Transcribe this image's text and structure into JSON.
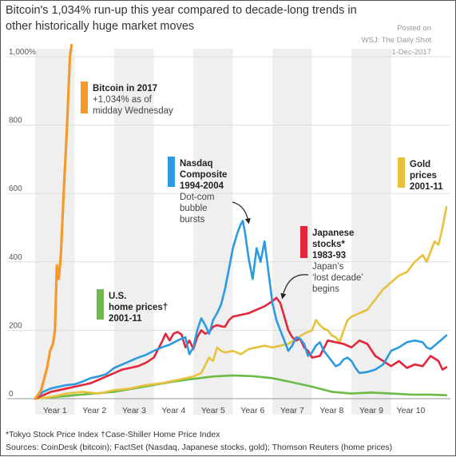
{
  "title": "Bitcoin's 1,034% run-up this year compared to decade-long trends in other historically huge market moves",
  "posted": {
    "line1": "Posted on",
    "line2": "WSJ: The Daily Shot",
    "line3": "01-Dec-2017"
  },
  "footnotes": {
    "line1": "*Tokyo Stock Price Index   †Case-Shiller Home Price Index",
    "line2": "Sources: CoinDesk (bitcoin); FactSet (Nasdaq, Japanese stocks, gold); Thomson Reuters (home prices)"
  },
  "colors": {
    "bitcoin": "#f59a2a",
    "nasdaq": "#2b9ae0",
    "japan": "#e3263a",
    "gold": "#e8c23a",
    "home": "#6cbb47",
    "band": "#efefef",
    "grid": "#dddddd"
  },
  "chart_data": {
    "type": "line",
    "title": "Bitcoin's 1,034% run-up this year compared to decade-long trends in other historically huge market moves",
    "xlabel": "",
    "ylabel": "",
    "ylim": [
      0,
      1000
    ],
    "xlim": [
      0,
      10
    ],
    "grid": true,
    "y_ticks": [
      {
        "value": 0,
        "label": "0"
      },
      {
        "value": 200,
        "label": "200"
      },
      {
        "value": 400,
        "label": "400"
      },
      {
        "value": 600,
        "label": "600"
      },
      {
        "value": 800,
        "label": "800"
      },
      {
        "value": 1000,
        "label": "1,000%"
      }
    ],
    "x_ticks": [
      {
        "value": 0.5,
        "label": "Year 1"
      },
      {
        "value": 1.5,
        "label": "Year 2"
      },
      {
        "value": 2.5,
        "label": "Year 3"
      },
      {
        "value": 3.5,
        "label": "Year 4"
      },
      {
        "value": 4.5,
        "label": "Year 5"
      },
      {
        "value": 5.5,
        "label": "Year 6"
      },
      {
        "value": 6.5,
        "label": "Year 7"
      },
      {
        "value": 7.5,
        "label": "Year 8"
      },
      {
        "value": 8.5,
        "label": "Year 9"
      },
      {
        "value": 9.5,
        "label": "Year 10"
      }
    ],
    "series": [
      {
        "key": "bitcoin",
        "name": "Bitcoin in 2017",
        "points": [
          [
            0,
            0
          ],
          [
            0.08,
            12
          ],
          [
            0.15,
            25
          ],
          [
            0.22,
            55
          ],
          [
            0.3,
            90
          ],
          [
            0.38,
            140
          ],
          [
            0.45,
            160
          ],
          [
            0.5,
            200
          ],
          [
            0.55,
            390
          ],
          [
            0.6,
            350
          ],
          [
            0.65,
            420
          ],
          [
            0.72,
            600
          ],
          [
            0.8,
            780
          ],
          [
            0.88,
            1000
          ],
          [
            0.92,
            1034
          ]
        ]
      },
      {
        "key": "nasdaq",
        "name": "Nasdaq Composite 1994-2004",
        "points": [
          [
            0,
            0
          ],
          [
            0.2,
            20
          ],
          [
            0.4,
            30
          ],
          [
            0.6,
            35
          ],
          [
            0.8,
            40
          ],
          [
            1.0,
            42
          ],
          [
            1.2,
            50
          ],
          [
            1.4,
            60
          ],
          [
            1.6,
            65
          ],
          [
            1.8,
            72
          ],
          [
            2.0,
            90
          ],
          [
            2.2,
            100
          ],
          [
            2.4,
            110
          ],
          [
            2.6,
            120
          ],
          [
            2.8,
            128
          ],
          [
            3.0,
            140
          ],
          [
            3.2,
            150
          ],
          [
            3.4,
            158
          ],
          [
            3.6,
            170
          ],
          [
            3.8,
            180
          ],
          [
            3.9,
            130
          ],
          [
            4.0,
            150
          ],
          [
            4.1,
            200
          ],
          [
            4.2,
            235
          ],
          [
            4.3,
            215
          ],
          [
            4.4,
            190
          ],
          [
            4.5,
            230
          ],
          [
            4.6,
            250
          ],
          [
            4.7,
            275
          ],
          [
            4.8,
            320
          ],
          [
            4.9,
            380
          ],
          [
            5.0,
            440
          ],
          [
            5.1,
            480
          ],
          [
            5.2,
            510
          ],
          [
            5.25,
            520
          ],
          [
            5.3,
            490
          ],
          [
            5.4,
            410
          ],
          [
            5.5,
            350
          ],
          [
            5.6,
            440
          ],
          [
            5.7,
            400
          ],
          [
            5.8,
            460
          ],
          [
            5.9,
            370
          ],
          [
            6.0,
            280
          ],
          [
            6.1,
            230
          ],
          [
            6.2,
            200
          ],
          [
            6.3,
            170
          ],
          [
            6.4,
            140
          ],
          [
            6.5,
            155
          ],
          [
            6.6,
            180
          ],
          [
            6.7,
            175
          ],
          [
            6.8,
            160
          ],
          [
            6.9,
            125
          ],
          [
            7.0,
            135
          ],
          [
            7.1,
            155
          ],
          [
            7.2,
            165
          ],
          [
            7.3,
            140
          ],
          [
            7.4,
            125
          ],
          [
            7.5,
            110
          ],
          [
            7.6,
            95
          ],
          [
            7.7,
            100
          ],
          [
            7.8,
            115
          ],
          [
            7.9,
            120
          ],
          [
            8.0,
            110
          ],
          [
            8.1,
            90
          ],
          [
            8.2,
            75
          ],
          [
            8.4,
            78
          ],
          [
            8.6,
            85
          ],
          [
            8.8,
            100
          ],
          [
            9.0,
            140
          ],
          [
            9.2,
            150
          ],
          [
            9.4,
            165
          ],
          [
            9.6,
            170
          ],
          [
            9.8,
            165
          ],
          [
            9.9,
            150
          ],
          [
            10.0,
            145
          ],
          [
            10.2,
            165
          ],
          [
            10.4,
            185
          ]
        ]
      },
      {
        "key": "japan",
        "name": "Japanese stocks* 1983-93",
        "points": [
          [
            0,
            0
          ],
          [
            0.2,
            10
          ],
          [
            0.4,
            20
          ],
          [
            0.6,
            25
          ],
          [
            0.8,
            30
          ],
          [
            1.0,
            35
          ],
          [
            1.2,
            40
          ],
          [
            1.4,
            45
          ],
          [
            1.6,
            55
          ],
          [
            1.8,
            65
          ],
          [
            2.0,
            75
          ],
          [
            2.2,
            85
          ],
          [
            2.4,
            90
          ],
          [
            2.6,
            95
          ],
          [
            2.8,
            105
          ],
          [
            3.0,
            120
          ],
          [
            3.2,
            165
          ],
          [
            3.3,
            190
          ],
          [
            3.4,
            170
          ],
          [
            3.5,
            190
          ],
          [
            3.6,
            195
          ],
          [
            3.7,
            188
          ],
          [
            3.8,
            150
          ],
          [
            3.9,
            170
          ],
          [
            4.0,
            145
          ],
          [
            4.1,
            180
          ],
          [
            4.2,
            200
          ],
          [
            4.3,
            190
          ],
          [
            4.4,
            195
          ],
          [
            4.5,
            210
          ],
          [
            4.6,
            215
          ],
          [
            4.7,
            212
          ],
          [
            4.8,
            210
          ],
          [
            4.9,
            230
          ],
          [
            5.0,
            240
          ],
          [
            5.2,
            245
          ],
          [
            5.4,
            250
          ],
          [
            5.6,
            260
          ],
          [
            5.8,
            270
          ],
          [
            6.0,
            285
          ],
          [
            6.1,
            295
          ],
          [
            6.2,
            280
          ],
          [
            6.3,
            240
          ],
          [
            6.4,
            200
          ],
          [
            6.5,
            180
          ],
          [
            6.6,
            170
          ],
          [
            6.7,
            175
          ],
          [
            6.8,
            150
          ],
          [
            6.9,
            140
          ],
          [
            7.0,
            120
          ],
          [
            7.2,
            125
          ],
          [
            7.4,
            170
          ],
          [
            7.6,
            165
          ],
          [
            7.8,
            160
          ],
          [
            8.0,
            150
          ],
          [
            8.2,
            170
          ],
          [
            8.4,
            160
          ],
          [
            8.6,
            125
          ],
          [
            8.8,
            110
          ],
          [
            9.0,
            95
          ],
          [
            9.2,
            110
          ],
          [
            9.4,
            90
          ],
          [
            9.6,
            100
          ],
          [
            9.8,
            95
          ],
          [
            10.0,
            125
          ],
          [
            10.2,
            110
          ],
          [
            10.3,
            85
          ],
          [
            10.4,
            92
          ]
        ]
      },
      {
        "key": "gold",
        "name": "Gold prices 2001-11",
        "points": [
          [
            0,
            0
          ],
          [
            0.4,
            5
          ],
          [
            0.8,
            15
          ],
          [
            1.2,
            20
          ],
          [
            1.6,
            15
          ],
          [
            2.0,
            25
          ],
          [
            2.4,
            30
          ],
          [
            2.8,
            40
          ],
          [
            3.2,
            45
          ],
          [
            3.6,
            55
          ],
          [
            4.0,
            65
          ],
          [
            4.2,
            75
          ],
          [
            4.4,
            120
          ],
          [
            4.5,
            110
          ],
          [
            4.6,
            150
          ],
          [
            4.7,
            140
          ],
          [
            4.8,
            135
          ],
          [
            5.0,
            140
          ],
          [
            5.2,
            130
          ],
          [
            5.4,
            145
          ],
          [
            5.6,
            150
          ],
          [
            5.8,
            155
          ],
          [
            6.0,
            150
          ],
          [
            6.2,
            155
          ],
          [
            6.4,
            160
          ],
          [
            6.6,
            175
          ],
          [
            6.8,
            190
          ],
          [
            7.0,
            200
          ],
          [
            7.1,
            230
          ],
          [
            7.2,
            215
          ],
          [
            7.3,
            205
          ],
          [
            7.4,
            200
          ],
          [
            7.5,
            185
          ],
          [
            7.6,
            180
          ],
          [
            7.7,
            165
          ],
          [
            7.8,
            200
          ],
          [
            7.9,
            230
          ],
          [
            8.0,
            240
          ],
          [
            8.2,
            250
          ],
          [
            8.4,
            260
          ],
          [
            8.6,
            290
          ],
          [
            8.8,
            320
          ],
          [
            9.0,
            340
          ],
          [
            9.2,
            360
          ],
          [
            9.4,
            370
          ],
          [
            9.6,
            400
          ],
          [
            9.8,
            420
          ],
          [
            9.9,
            400
          ],
          [
            10.0,
            430
          ],
          [
            10.1,
            460
          ],
          [
            10.2,
            450
          ],
          [
            10.3,
            500
          ],
          [
            10.4,
            560
          ]
        ]
      },
      {
        "key": "home",
        "name": "U.S. home prices† 2001-11",
        "points": [
          [
            0,
            0
          ],
          [
            0.5,
            5
          ],
          [
            1.0,
            10
          ],
          [
            1.5,
            15
          ],
          [
            2.0,
            20
          ],
          [
            2.5,
            30
          ],
          [
            3.0,
            40
          ],
          [
            3.5,
            50
          ],
          [
            4.0,
            58
          ],
          [
            4.5,
            65
          ],
          [
            5.0,
            68
          ],
          [
            5.5,
            66
          ],
          [
            6.0,
            60
          ],
          [
            6.5,
            48
          ],
          [
            7.0,
            35
          ],
          [
            7.5,
            20
          ],
          [
            8.0,
            15
          ],
          [
            8.5,
            18
          ],
          [
            9.0,
            15
          ],
          [
            9.5,
            12
          ],
          [
            10.0,
            12
          ],
          [
            10.4,
            10
          ]
        ]
      }
    ],
    "annotations": [
      {
        "key": "bitcoin",
        "lines": [
          {
            "text": "Bitcoin in 2017",
            "bold": true
          },
          {
            "text": "+1,034% as of",
            "bold": false
          },
          {
            "text": "midday Wednesday",
            "bold": false
          }
        ]
      },
      {
        "key": "nasdaq",
        "lines": [
          {
            "text": "Nasdaq",
            "bold": true
          },
          {
            "text": "Composite",
            "bold": true
          },
          {
            "text": "1994-2004",
            "bold": true
          },
          {
            "text": "Dot-com",
            "bold": false
          },
          {
            "text": "bubble",
            "bold": false
          },
          {
            "text": "bursts",
            "bold": false
          }
        ]
      },
      {
        "key": "japan",
        "lines": [
          {
            "text": "Japanese",
            "bold": true
          },
          {
            "text": "stocks*",
            "bold": true
          },
          {
            "text": "1983-93",
            "bold": true
          },
          {
            "text": "Japan’s",
            "bold": false
          },
          {
            "text": "‘lost decade’",
            "bold": false
          },
          {
            "text": "begins",
            "bold": false
          }
        ]
      },
      {
        "key": "gold",
        "lines": [
          {
            "text": "Gold",
            "bold": true
          },
          {
            "text": "prices",
            "bold": true
          },
          {
            "text": "2001-11",
            "bold": true
          }
        ]
      },
      {
        "key": "home",
        "lines": [
          {
            "text": "U.S.",
            "bold": true
          },
          {
            "text": "home prices†",
            "bold": true
          },
          {
            "text": "2001-11",
            "bold": true
          }
        ]
      }
    ]
  }
}
